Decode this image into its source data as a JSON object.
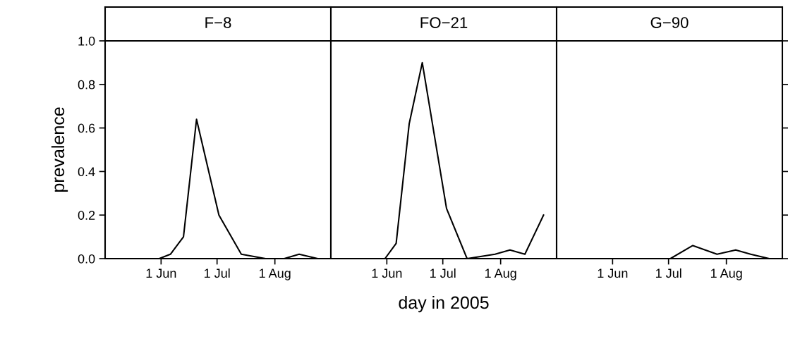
{
  "chart_data": [
    {
      "type": "line",
      "title": "F−8",
      "ylabel": "prevalence",
      "x": [
        "2005-05-31",
        "2005-06-06",
        "2005-06-13",
        "2005-06-20",
        "2005-07-02",
        "2005-07-14",
        "2005-07-27",
        "2005-08-06",
        "2005-08-14",
        "2005-08-24"
      ],
      "series": [
        {
          "color": "#000000",
          "values": [
            0,
            0.02,
            0.1,
            0.64,
            0.2,
            0.02,
            0,
            0,
            0.02,
            0
          ]
        }
      ],
      "xlim": [
        "2005-05-02",
        "2005-08-31"
      ],
      "xticks": [
        {
          "value": "2005-06-01",
          "label": "1 Jun"
        },
        {
          "value": "2005-07-01",
          "label": "1 Jul"
        },
        {
          "value": "2005-08-01",
          "label": "1 Aug"
        }
      ],
      "ylim": [
        0,
        1
      ],
      "yticks": [
        {
          "value": 0,
          "label": "0.0"
        },
        {
          "value": 0.2,
          "label": "0.2"
        },
        {
          "value": 0.4,
          "label": "0.4"
        },
        {
          "value": 0.6,
          "label": "0.6"
        },
        {
          "value": 0.8,
          "label": "0.8"
        },
        {
          "value": 1,
          "label": "1.0"
        }
      ]
    },
    {
      "type": "line",
      "title": "FO−21",
      "xlabel": "day in 2005",
      "x": [
        "2005-05-31",
        "2005-06-06",
        "2005-06-13",
        "2005-06-20",
        "2005-07-03",
        "2005-07-14",
        "2005-07-29",
        "2005-08-06",
        "2005-08-14",
        "2005-08-24"
      ],
      "series": [
        {
          "color": "#000000",
          "values": [
            0,
            0.07,
            0.62,
            0.9,
            0.23,
            0,
            0.02,
            0.04,
            0.02,
            0.2
          ]
        }
      ],
      "xlim": [
        "2005-05-02",
        "2005-08-31"
      ],
      "xticks": [
        {
          "value": "2005-06-01",
          "label": "1 Jun"
        },
        {
          "value": "2005-07-01",
          "label": "1 Jul"
        },
        {
          "value": "2005-08-01",
          "label": "1 Aug"
        }
      ],
      "ylim": [
        0,
        1
      ],
      "tick_labels": "x"
    },
    {
      "type": "line",
      "title": "G−90",
      "x": [
        "2005-05-31",
        "2005-06-06",
        "2005-06-13",
        "2005-06-20",
        "2005-07-02",
        "2005-07-14",
        "2005-07-27",
        "2005-08-06",
        "2005-08-14",
        "2005-08-24"
      ],
      "series": [
        {
          "color": "#000000",
          "values": [
            0,
            0,
            0,
            0,
            0,
            0.06,
            0.02,
            0.04,
            0.02,
            0
          ]
        }
      ],
      "xlim": [
        "2005-05-02",
        "2005-08-31"
      ],
      "xticks": [
        {
          "value": "2005-06-01",
          "label": "1 Jun"
        },
        {
          "value": "2005-07-01",
          "label": "1 Jul"
        },
        {
          "value": "2005-08-01",
          "label": "1 Aug"
        }
      ],
      "ylim": [
        0,
        1
      ],
      "yticks": [
        {
          "value": 0,
          "label": null
        },
        {
          "value": 0.2,
          "label": null
        },
        {
          "value": 0.4,
          "label": null
        },
        {
          "value": 0.6,
          "label": null
        },
        {
          "value": 0.8,
          "label": null
        },
        {
          "value": 1,
          "label": null
        }
      ],
      "tick_labels": "x"
    }
  ]
}
